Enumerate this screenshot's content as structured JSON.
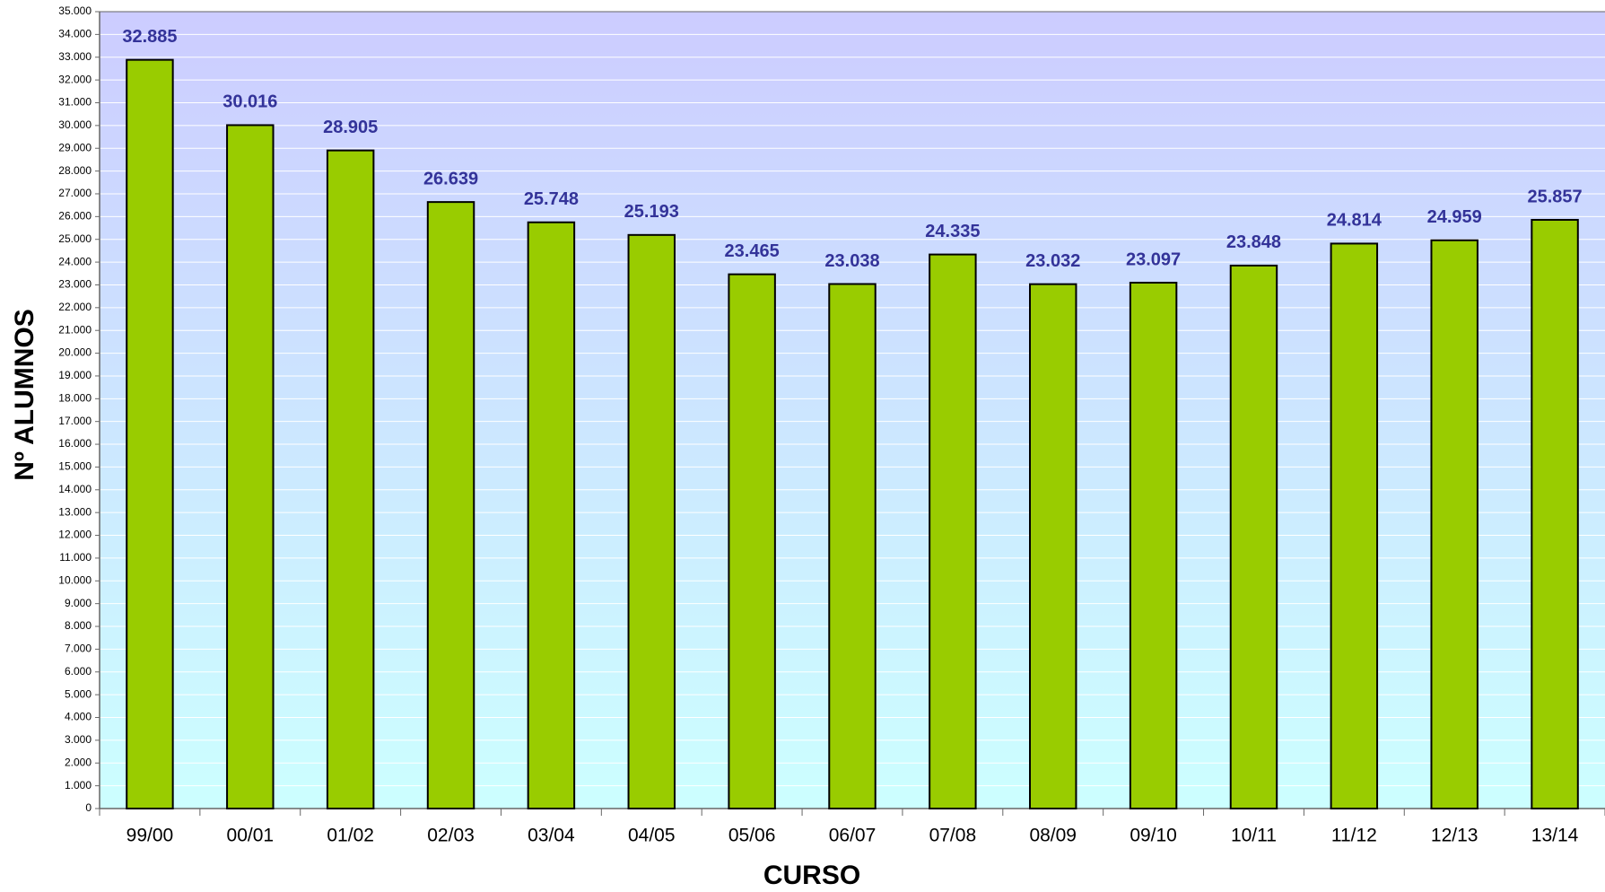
{
  "chart_data": {
    "type": "bar",
    "xlabel": "CURSO",
    "ylabel": "Nº ALUMNOS",
    "categories": [
      "99/00",
      "00/01",
      "01/02",
      "02/03",
      "03/04",
      "04/05",
      "05/06",
      "06/07",
      "07/08",
      "08/09",
      "09/10",
      "10/11",
      "11/12",
      "12/13",
      "13/14"
    ],
    "values": [
      32885,
      30016,
      28905,
      26639,
      25748,
      25193,
      23465,
      23038,
      24335,
      23032,
      23097,
      23848,
      24814,
      24959,
      25857
    ],
    "value_labels": [
      "32.885",
      "30.016",
      "28.905",
      "26.639",
      "25.748",
      "25.193",
      "23.465",
      "23.038",
      "24.335",
      "23.032",
      "23.097",
      "23.848",
      "24.814",
      "24.959",
      "25.857"
    ],
    "color": "#99cc00",
    "ylim": [
      0,
      35000
    ],
    "yticks": [
      0,
      {
        "value": 1000,
        "label": "1.000"
      },
      {
        "value": 2000,
        "label": "2.000"
      },
      {
        "value": 3000,
        "label": "3.000"
      },
      {
        "value": 4000,
        "label": "4.000"
      },
      {
        "value": 5000,
        "label": "5.000"
      },
      {
        "value": 6000,
        "label": "6.000"
      },
      {
        "value": 7000,
        "label": "7.000"
      },
      {
        "value": 8000,
        "label": "8.000"
      },
      {
        "value": 9000,
        "label": "9.000"
      },
      {
        "value": 10000,
        "label": "10.000"
      },
      {
        "value": 11000,
        "label": "11.000"
      },
      {
        "value": 12000,
        "label": "12.000"
      },
      {
        "value": 13000,
        "label": "13.000"
      },
      {
        "value": 14000,
        "label": "14.000"
      },
      {
        "value": 15000,
        "label": "15.000"
      },
      {
        "value": 16000,
        "label": "16.000"
      },
      {
        "value": 17000,
        "label": "17.000"
      },
      {
        "value": 18000,
        "label": "18.000"
      },
      {
        "value": 19000,
        "label": "19.000"
      },
      {
        "value": 20000,
        "label": "20.000"
      },
      {
        "value": 21000,
        "label": "21.000"
      },
      {
        "value": 22000,
        "label": "22.000"
      },
      {
        "value": 23000,
        "label": "23.000"
      },
      {
        "value": 24000,
        "label": "24.000"
      },
      {
        "value": 25000,
        "label": "25.000"
      },
      {
        "value": 26000,
        "label": "26.000"
      },
      {
        "value": 27000,
        "label": "27.000"
      },
      {
        "value": 28000,
        "label": "28.000"
      },
      {
        "value": 29000,
        "label": "29.000"
      },
      {
        "value": 30000,
        "label": "30.000"
      },
      {
        "value": 31000,
        "label": "31.000"
      },
      {
        "value": 32000,
        "label": "32.000"
      },
      {
        "value": 33000,
        "label": "33.000"
      },
      {
        "value": 34000,
        "label": "34.000"
      },
      {
        "value": 35000,
        "label": "35.000"
      }
    ],
    "grid": true
  }
}
